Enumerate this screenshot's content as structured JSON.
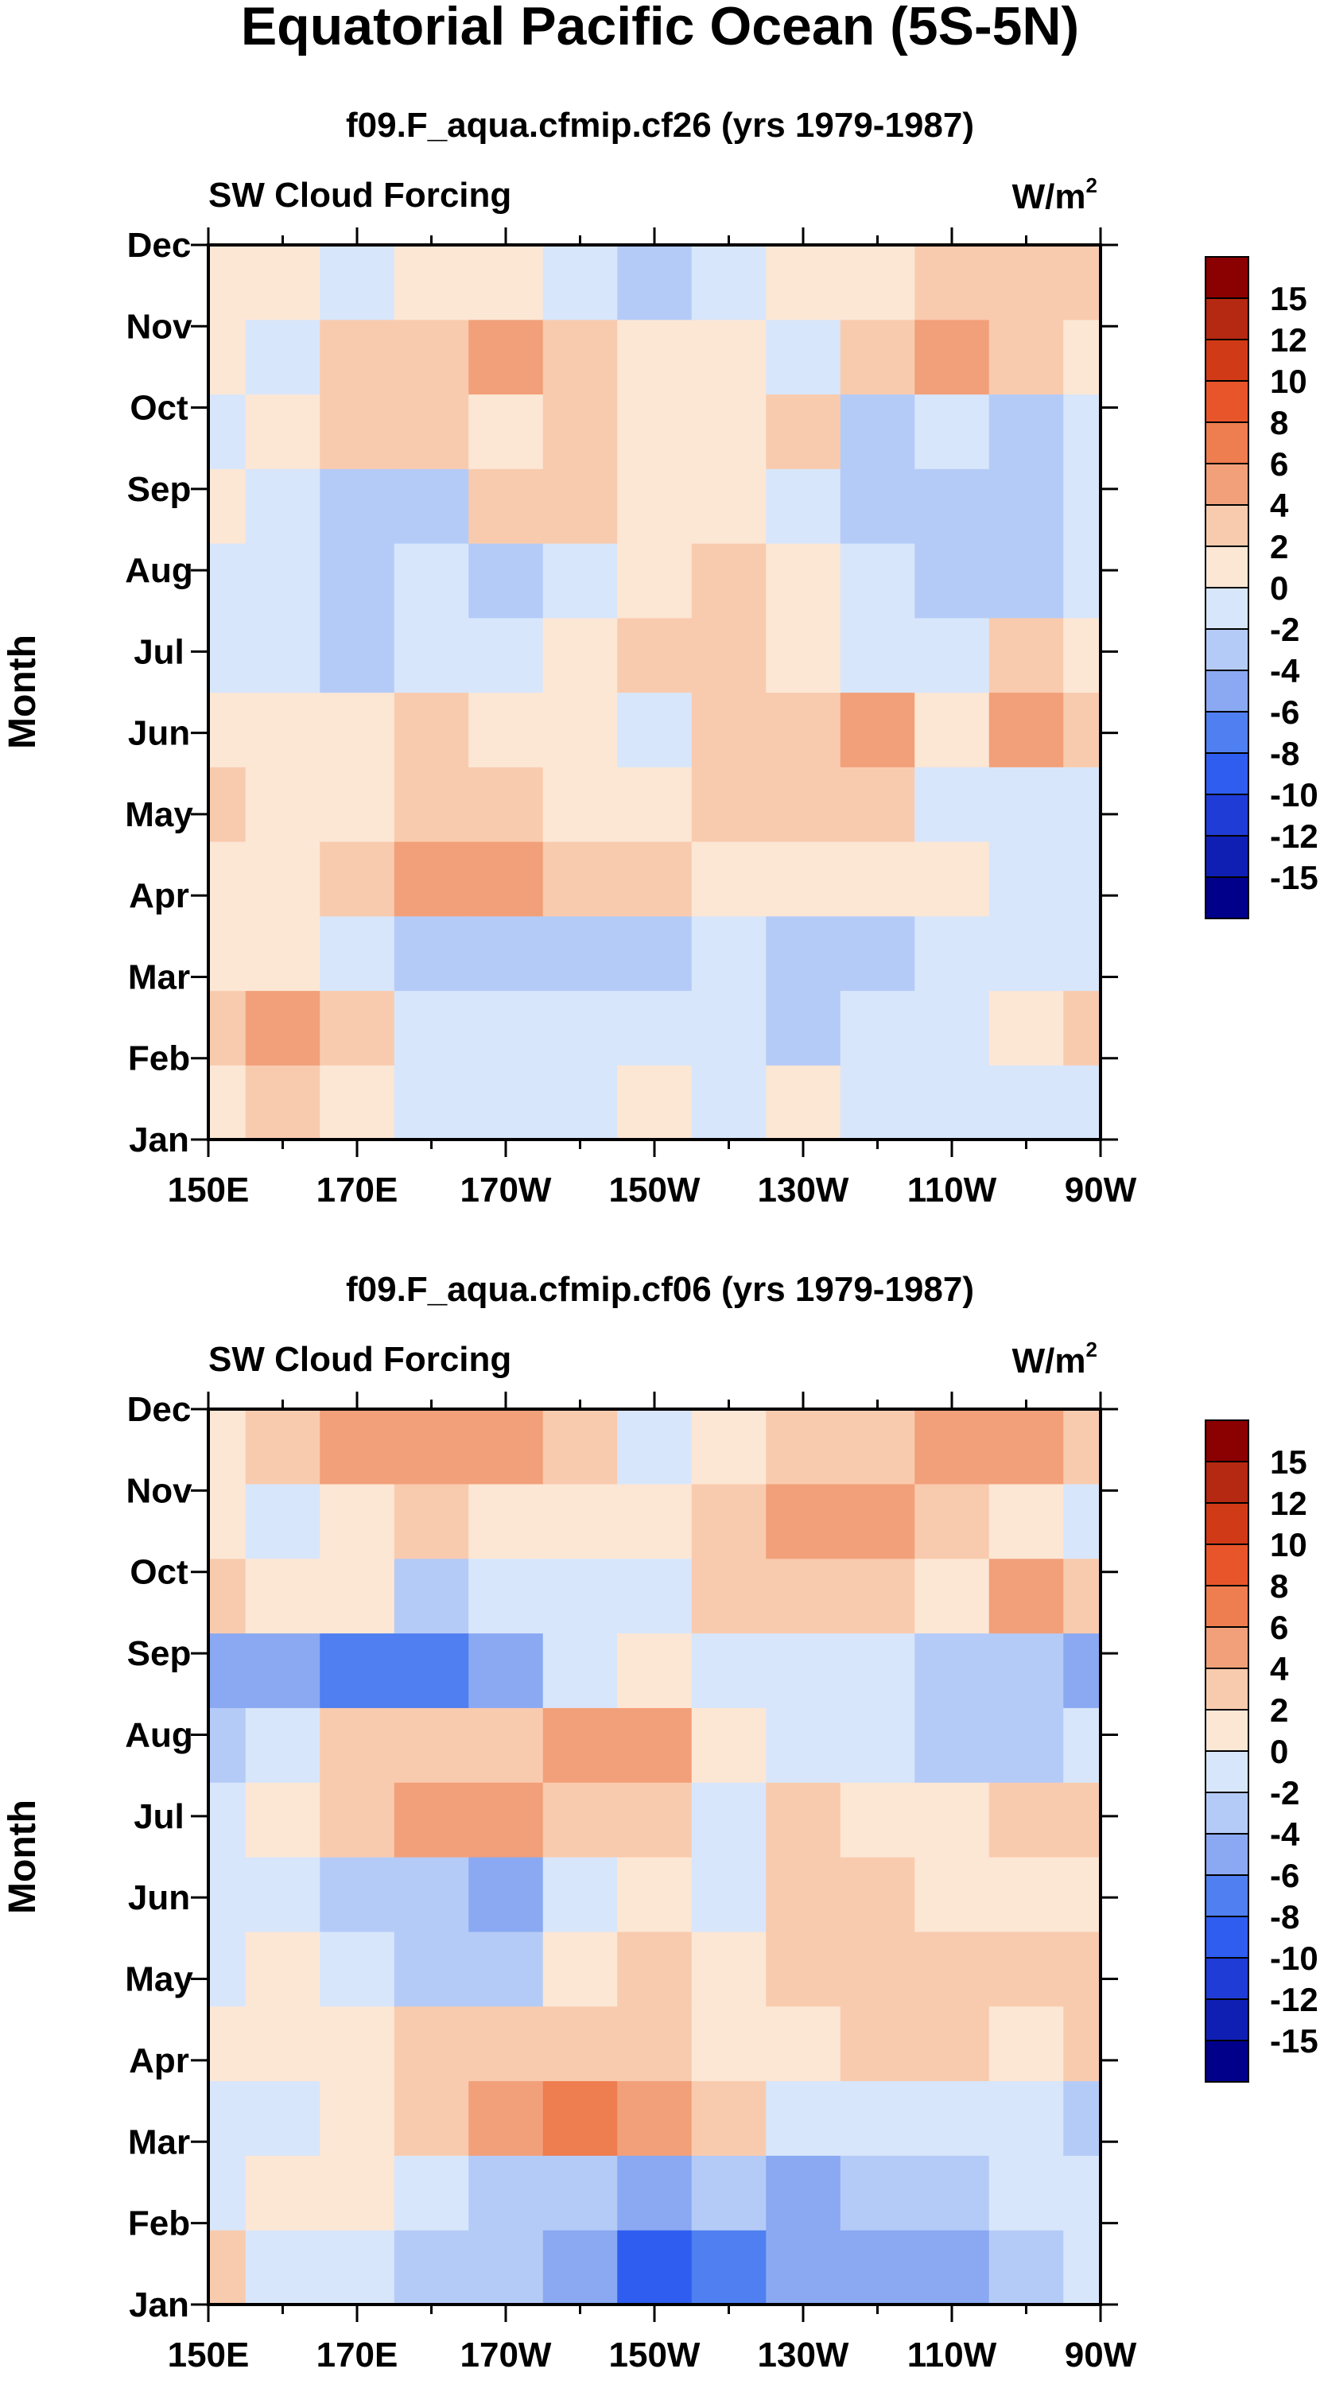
{
  "page": {
    "title": "Equatorial Pacific Ocean (5S-5N)"
  },
  "colors": {
    "scale": [
      "#00008b",
      "#0f1fb4",
      "#1f3cd6",
      "#2e5df0",
      "#4f7ff0",
      "#8aa9f2",
      "#b5cbf7",
      "#d8e6fb",
      "#fce7d5",
      "#f9cbae",
      "#f2a07a",
      "#ee7d4f",
      "#e8552b",
      "#d03a17",
      "#b52811",
      "#8b0000"
    ]
  },
  "chart_data": [
    {
      "type": "heatmap",
      "title": "f09.F_aqua.cfmip.cf26 (yrs 1979-1987)",
      "left_label": "SW Cloud Forcing",
      "units_label": "W/m",
      "units_sup": "2",
      "ylabel": "Month",
      "xlabel": "",
      "x_ticks": [
        "150E",
        "170E",
        "170W",
        "150W",
        "130W",
        "110W",
        "90W"
      ],
      "y_ticks": [
        "Jan",
        "Feb",
        "Mar",
        "Apr",
        "May",
        "Jun",
        "Jul",
        "Aug",
        "Sep",
        "Oct",
        "Nov",
        "Dec"
      ],
      "x_range": [
        150,
        270
      ],
      "levels": [
        -15,
        -12,
        -10,
        -8,
        -6,
        -4,
        -2,
        0,
        2,
        4,
        6,
        8,
        10,
        12,
        15
      ],
      "colorbar_labels": [
        "15",
        "12",
        "10",
        "8",
        "6",
        "4",
        "2",
        "0",
        "-2",
        "-4",
        "-6",
        "-8",
        "-10",
        "-12",
        "-15"
      ],
      "lon": [
        150,
        160,
        170,
        180,
        190,
        200,
        210,
        220,
        230,
        240,
        250,
        260,
        270
      ],
      "values": [
        [
          1,
          2,
          0,
          -1,
          -2,
          -2,
          0,
          -1,
          0,
          -1,
          -1,
          -1,
          -1
        ],
        [
          2,
          4,
          2,
          -1,
          -2,
          -1,
          -1,
          -2,
          -4,
          -2,
          -1,
          1,
          2
        ],
        [
          1,
          0,
          -1,
          -3,
          -3,
          -3,
          -4,
          -2,
          -4,
          -3,
          -1,
          -1,
          -2
        ],
        [
          1,
          0,
          2,
          5,
          4,
          3,
          2,
          1,
          1,
          0,
          0,
          -1,
          -1
        ],
        [
          2,
          1,
          0,
          2,
          2,
          1,
          0,
          2,
          3,
          2,
          -1,
          -1,
          -2
        ],
        [
          0,
          1,
          1,
          2,
          1,
          0,
          -1,
          2,
          3,
          4,
          1,
          4,
          3
        ],
        [
          -2,
          -2,
          -3,
          -1,
          -1,
          0,
          2,
          3,
          1,
          -2,
          -1,
          2,
          1
        ],
        [
          -1,
          -2,
          -3,
          -2,
          -3,
          -1,
          1,
          2,
          0,
          -2,
          -4,
          -3,
          -1
        ],
        [
          0,
          -1,
          -3,
          -3,
          2,
          3,
          1,
          1,
          -1,
          -3,
          -3,
          -4,
          -2
        ],
        [
          -1,
          1,
          2,
          3,
          1,
          2,
          1,
          0,
          2,
          -3,
          -2,
          -3,
          -1
        ],
        [
          0,
          -2,
          2,
          3,
          4,
          2,
          1,
          0,
          -1,
          2,
          4,
          3,
          1
        ],
        [
          1,
          0,
          -1,
          0,
          1,
          -2,
          -3,
          -1,
          0,
          1,
          2,
          2,
          3
        ]
      ]
    },
    {
      "type": "heatmap",
      "title": "f09.F_aqua.cfmip.cf06 (yrs 1979-1987)",
      "left_label": "SW Cloud Forcing",
      "units_label": "W/m",
      "units_sup": "2",
      "ylabel": "Month",
      "xlabel": "",
      "x_ticks": [
        "150E",
        "170E",
        "170W",
        "150W",
        "130W",
        "110W",
        "90W"
      ],
      "y_ticks": [
        "Jan",
        "Feb",
        "Mar",
        "Apr",
        "May",
        "Jun",
        "Jul",
        "Aug",
        "Sep",
        "Oct",
        "Nov",
        "Dec"
      ],
      "x_range": [
        150,
        270
      ],
      "levels": [
        -15,
        -12,
        -10,
        -8,
        -6,
        -4,
        -2,
        0,
        2,
        4,
        6,
        8,
        10,
        12,
        15
      ],
      "colorbar_labels": [
        "15",
        "12",
        "10",
        "8",
        "6",
        "4",
        "2",
        "0",
        "-2",
        "-4",
        "-6",
        "-8",
        "-10",
        "-12",
        "-15"
      ],
      "lon": [
        150,
        160,
        170,
        180,
        190,
        200,
        210,
        220,
        230,
        240,
        250,
        260,
        270
      ],
      "values": [
        [
          2,
          -1,
          -2,
          -3,
          -4,
          -6,
          -9,
          -7,
          -5,
          -6,
          -6,
          -4,
          -1
        ],
        [
          -1,
          1,
          1,
          -2,
          -3,
          -4,
          -5,
          -4,
          -5,
          -4,
          -3,
          -2,
          -1
        ],
        [
          -1,
          -1,
          1,
          3,
          5,
          6,
          4,
          2,
          -1,
          -2,
          -2,
          -2,
          -3
        ],
        [
          0,
          1,
          1,
          2,
          3,
          3,
          2,
          1,
          1,
          2,
          2,
          1,
          3
        ],
        [
          -1,
          0,
          -2,
          -3,
          -4,
          1,
          2,
          1,
          2,
          2,
          3,
          3,
          2
        ],
        [
          -1,
          -1,
          -3,
          -4,
          -5,
          -2,
          0,
          -1,
          3,
          2,
          1,
          0,
          1
        ],
        [
          -1,
          1,
          2,
          4,
          4,
          3,
          2,
          -1,
          2,
          1,
          0,
          2,
          3
        ],
        [
          -3,
          -2,
          2,
          3,
          3,
          4,
          4,
          1,
          -1,
          -2,
          -4,
          -3,
          -2
        ],
        [
          -6,
          -5,
          -7,
          -7,
          -5,
          -2,
          0,
          -2,
          -1,
          -2,
          -3,
          -4,
          -6
        ],
        [
          2,
          1,
          1,
          -4,
          -2,
          -1,
          -1,
          2,
          3,
          2,
          1,
          4,
          2
        ],
        [
          0,
          -1,
          1,
          2,
          1,
          1,
          0,
          2,
          4,
          4,
          3,
          1,
          -1
        ],
        [
          1,
          2,
          4,
          5,
          4,
          2,
          -1,
          1,
          2,
          3,
          5,
          5,
          3
        ]
      ]
    }
  ]
}
